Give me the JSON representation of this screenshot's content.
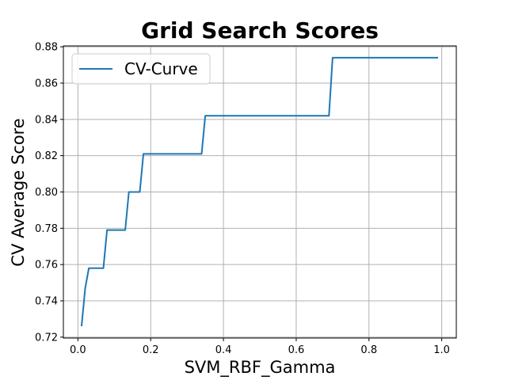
{
  "chart_data": {
    "type": "line",
    "title": "Grid Search Scores",
    "xlabel": "SVM_RBF_Gamma",
    "ylabel": "CV Average Score",
    "xlim": [
      -0.04,
      1.04
    ],
    "ylim": [
      0.7195,
      0.8805
    ],
    "xticks": [
      {
        "value": 0.0,
        "label": "0.0"
      },
      {
        "value": 0.2,
        "label": "0.2"
      },
      {
        "value": 0.4,
        "label": "0.4"
      },
      {
        "value": 0.6,
        "label": "0.6"
      },
      {
        "value": 0.8,
        "label": "0.8"
      },
      {
        "value": 1.0,
        "label": "1.0"
      }
    ],
    "yticks": [
      {
        "value": 0.72,
        "label": "0.72"
      },
      {
        "value": 0.74,
        "label": "0.74"
      },
      {
        "value": 0.76,
        "label": "0.76"
      },
      {
        "value": 0.78,
        "label": "0.78"
      },
      {
        "value": 0.8,
        "label": "0.80"
      },
      {
        "value": 0.82,
        "label": "0.82"
      },
      {
        "value": 0.84,
        "label": "0.84"
      },
      {
        "value": 0.86,
        "label": "0.86"
      },
      {
        "value": 0.88,
        "label": "0.88"
      }
    ],
    "grid": true,
    "legend_position": "top-left",
    "series": [
      {
        "name": "CV-Curve",
        "color": "#1f77b4",
        "x": [
          0.01,
          0.02,
          0.03,
          0.07,
          0.08,
          0.13,
          0.14,
          0.17,
          0.18,
          0.34,
          0.35,
          0.69,
          0.7,
          0.99
        ],
        "y": [
          0.726,
          0.747,
          0.758,
          0.758,
          0.779,
          0.779,
          0.8,
          0.8,
          0.821,
          0.821,
          0.842,
          0.842,
          0.874,
          0.874
        ]
      }
    ]
  },
  "style": {
    "background": "#ffffff",
    "grid_color": "#b0b0b0",
    "axis_color": "#000000"
  }
}
